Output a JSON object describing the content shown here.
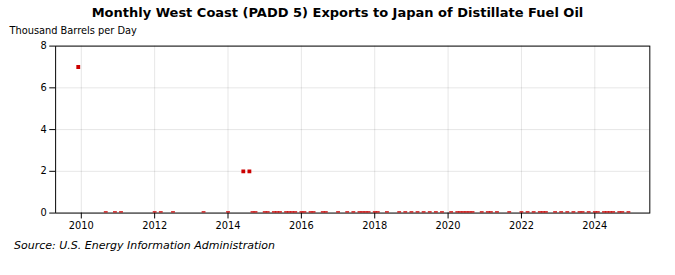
{
  "chart_data": {
    "type": "scatter",
    "title": "Monthly West Coast (PADD 5) Exports to Japan of Distillate Fuel Oil",
    "ylabel": "Thousand Barrels per Day",
    "caption": "Source: U.S. Energy Information Administration",
    "color": "#cc0000",
    "marker": "square",
    "grid": true,
    "xlim": [
      2009.3,
      2025.5
    ],
    "xticks": [
      2010,
      2012,
      2014,
      2016,
      2018,
      2020,
      2022,
      2024
    ],
    "ylim": [
      0,
      8
    ],
    "yticks": [
      0,
      2,
      4,
      6,
      8
    ],
    "x": [
      2009.917,
      2010.667,
      2010.917,
      2011.083,
      2012.0,
      2012.167,
      2012.5,
      2013.333,
      2014.0,
      2014.417,
      2014.583,
      2014.667,
      2014.75,
      2015.0,
      2015.083,
      2015.25,
      2015.333,
      2015.417,
      2015.583,
      2015.667,
      2015.75,
      2015.833,
      2016.0,
      2016.083,
      2016.25,
      2016.333,
      2016.583,
      2016.667,
      2017.0,
      2017.25,
      2017.417,
      2017.583,
      2017.667,
      2017.75,
      2017.833,
      2018.0,
      2018.083,
      2018.333,
      2018.667,
      2018.833,
      2019.0,
      2019.167,
      2019.333,
      2019.5,
      2019.667,
      2019.833,
      2020.083,
      2020.25,
      2020.333,
      2020.417,
      2020.5,
      2020.583,
      2020.667,
      2020.917,
      2021.083,
      2021.167,
      2021.333,
      2021.667,
      2022.0,
      2022.167,
      2022.333,
      2022.5,
      2022.583,
      2022.667,
      2022.917,
      2023.083,
      2023.25,
      2023.417,
      2023.583,
      2023.667,
      2023.833,
      2024.0,
      2024.083,
      2024.25,
      2024.333,
      2024.417,
      2024.5,
      2024.667,
      2024.75,
      2024.917
    ],
    "values": [
      7.0,
      0.0,
      0.0,
      0.0,
      0.0,
      0.0,
      0.0,
      0.0,
      0.0,
      2.0,
      2.0,
      0.0,
      0.0,
      0.0,
      0.0,
      0.0,
      0.0,
      0.0,
      0.0,
      0.0,
      0.0,
      0.0,
      0.0,
      0.0,
      0.0,
      0.0,
      0.0,
      0.0,
      0.0,
      0.0,
      0.0,
      0.0,
      0.0,
      0.0,
      0.0,
      0.0,
      0.0,
      0.0,
      0.0,
      0.0,
      0.0,
      0.0,
      0.0,
      0.0,
      0.0,
      0.0,
      0.0,
      0.0,
      0.0,
      0.0,
      0.0,
      0.0,
      0.0,
      0.0,
      0.0,
      0.0,
      0.0,
      0.0,
      0.0,
      0.0,
      0.0,
      0.0,
      0.0,
      0.0,
      0.0,
      0.0,
      0.0,
      0.0,
      0.0,
      0.0,
      0.0,
      0.0,
      0.0,
      0.0,
      0.0,
      0.0,
      0.0,
      0.0,
      0.0,
      0.0
    ]
  }
}
